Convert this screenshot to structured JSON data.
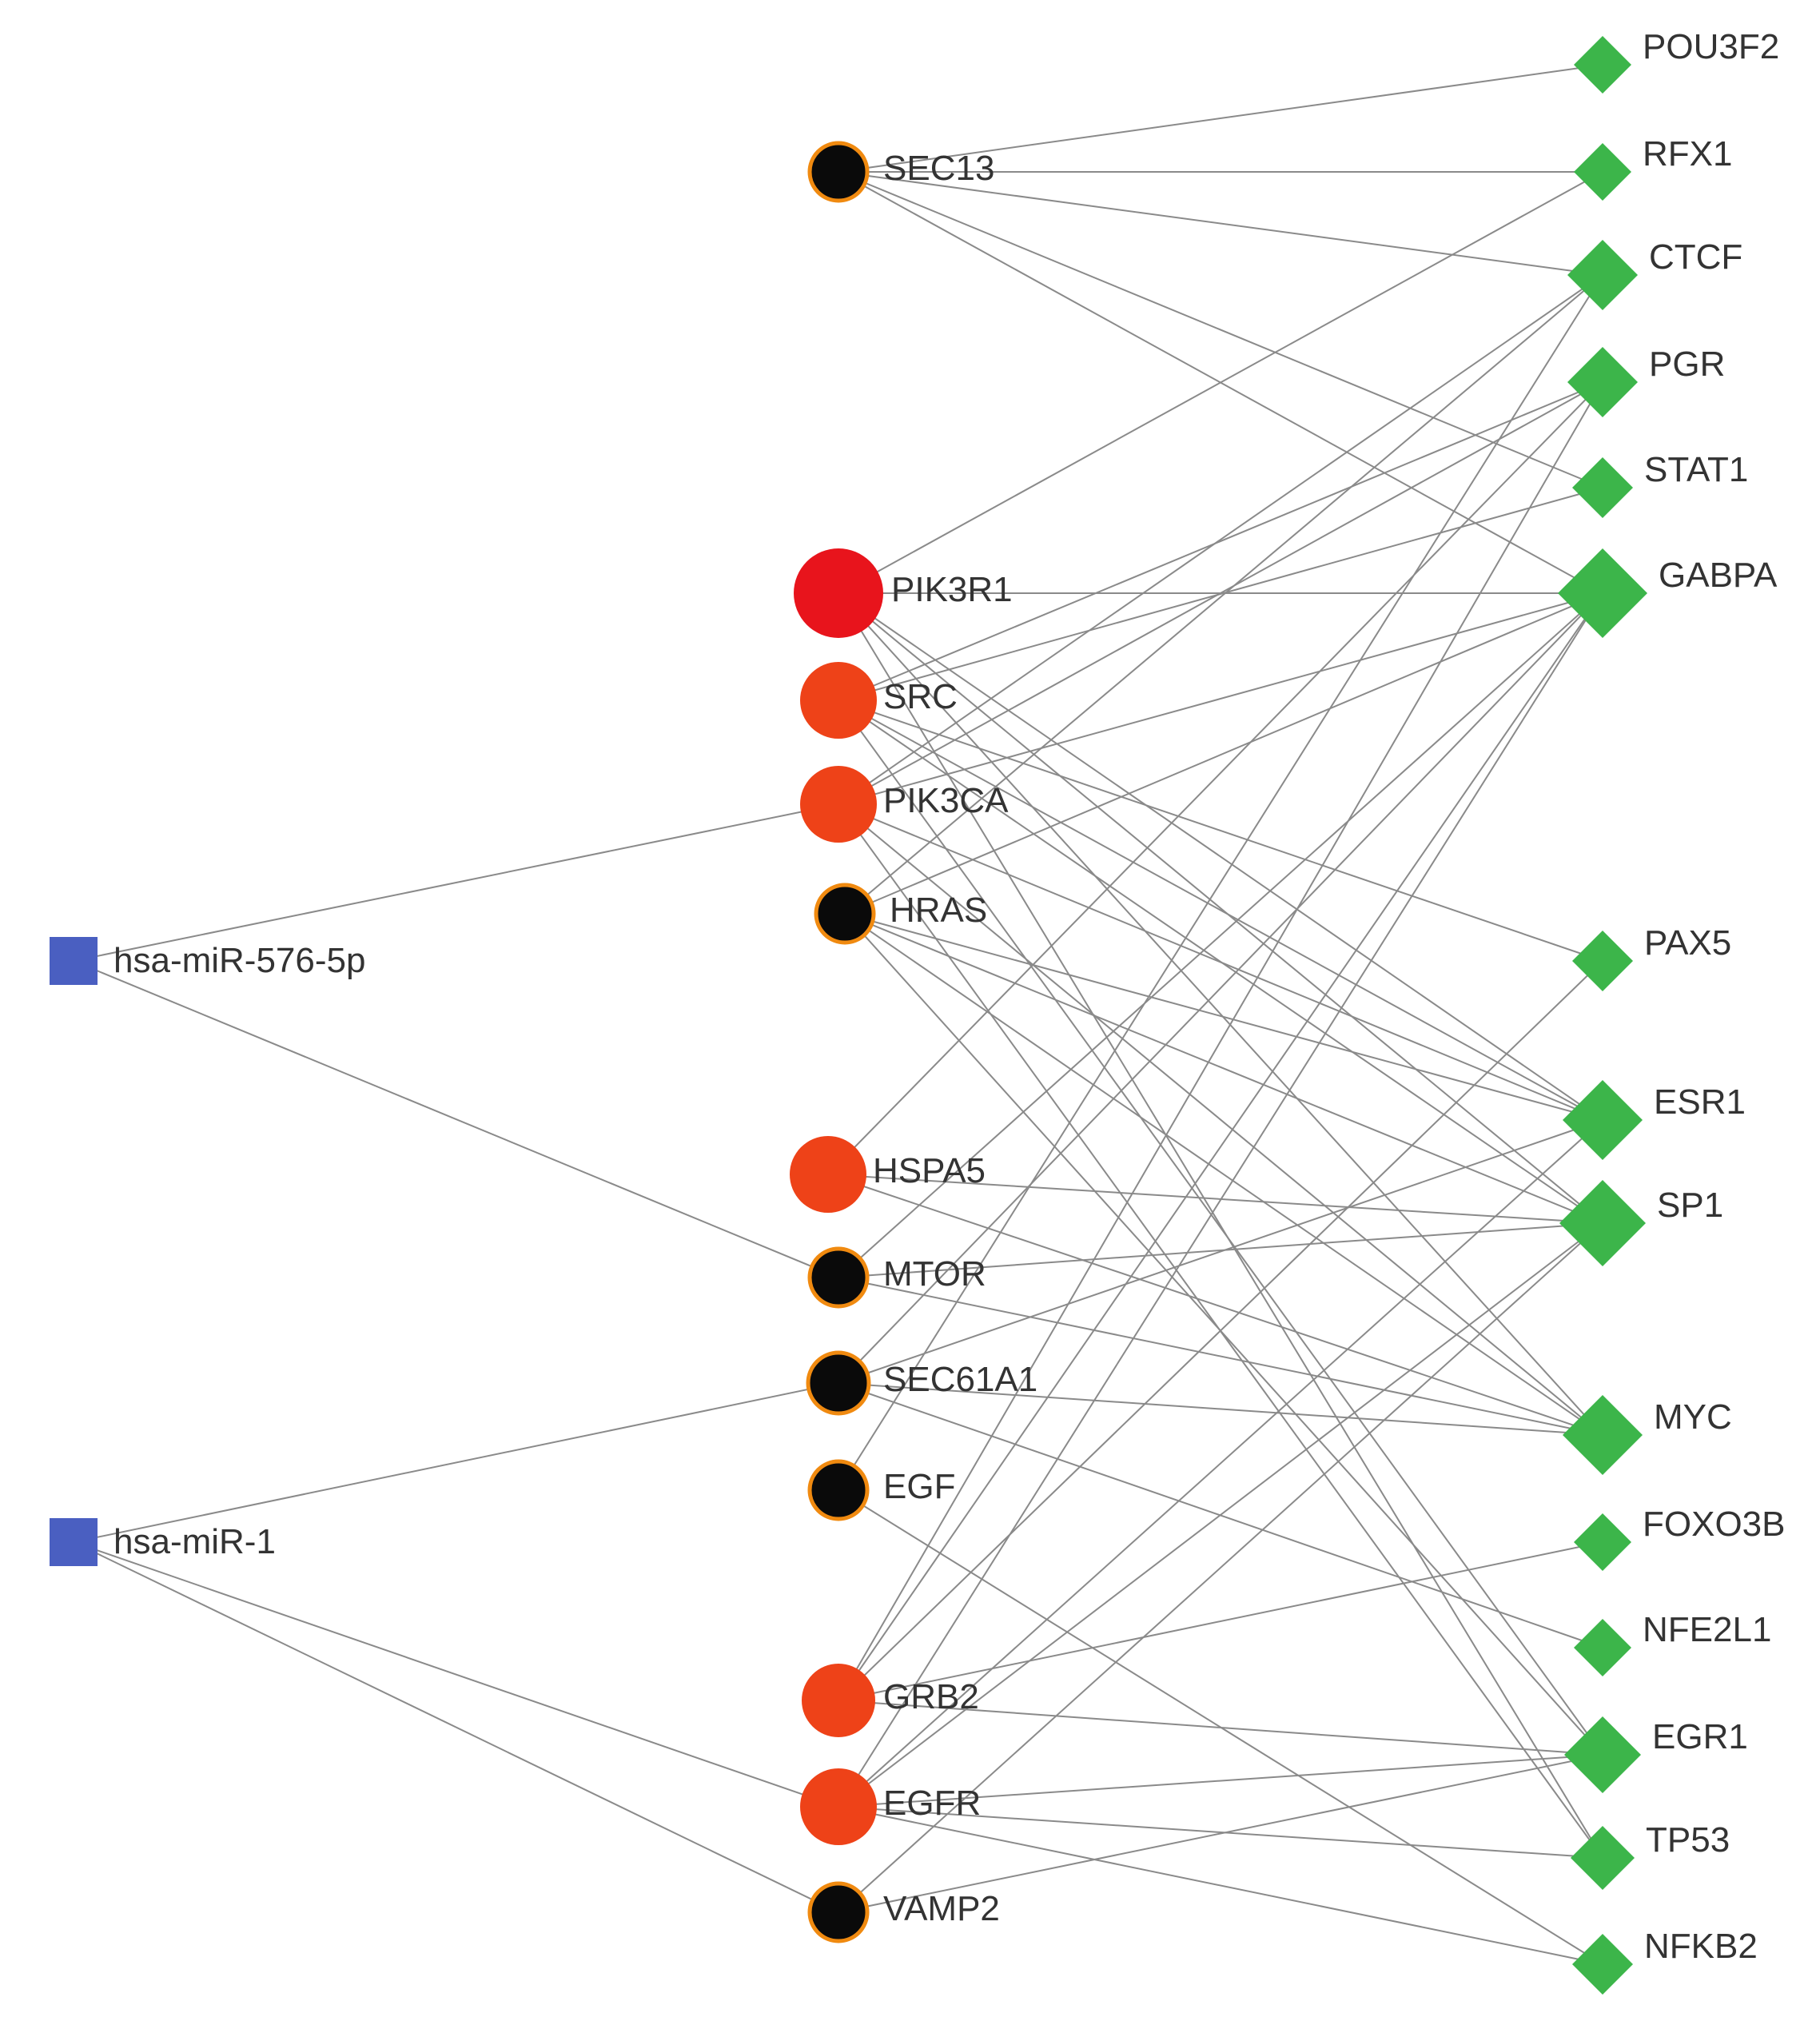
{
  "colors": {
    "mirna": "#4a5fc1",
    "tf": "#3cb54a",
    "hub_high": "#e8141c",
    "hub_mid": "#ee4218",
    "hub_low": "#0a0a0a",
    "hub_low_border": "#f08a10",
    "edge": "#8a8a8a"
  },
  "mirnas": [
    {
      "id": "hsa-miR-576-5p",
      "label": "hsa-miR-576-5p",
      "shape": "square"
    },
    {
      "id": "hsa-miR-1",
      "label": "hsa-miR-1",
      "shape": "square"
    }
  ],
  "genes": [
    {
      "id": "SEC13",
      "label": "SEC13",
      "level": "low"
    },
    {
      "id": "PIK3R1",
      "label": "PIK3R1",
      "level": "high"
    },
    {
      "id": "SRC",
      "label": "SRC",
      "level": "mid"
    },
    {
      "id": "PIK3CA",
      "label": "PIK3CA",
      "level": "mid"
    },
    {
      "id": "HRAS",
      "label": "HRAS",
      "level": "low"
    },
    {
      "id": "HSPA5",
      "label": "HSPA5",
      "level": "mid"
    },
    {
      "id": "MTOR",
      "label": "MTOR",
      "level": "low"
    },
    {
      "id": "SEC61A1",
      "label": "SEC61A1",
      "level": "low"
    },
    {
      "id": "EGF",
      "label": "EGF",
      "level": "low"
    },
    {
      "id": "GRB2",
      "label": "GRB2",
      "level": "mid"
    },
    {
      "id": "EGFR",
      "label": "EGFR",
      "level": "mid"
    },
    {
      "id": "VAMP2",
      "label": "VAMP2",
      "level": "low"
    }
  ],
  "tfs": [
    {
      "id": "POU3F2",
      "label": "POU3F2",
      "shape": "diamond"
    },
    {
      "id": "RFX1",
      "label": "RFX1",
      "shape": "diamond"
    },
    {
      "id": "CTCF",
      "label": "CTCF",
      "shape": "diamond"
    },
    {
      "id": "PGR",
      "label": "PGR",
      "shape": "diamond"
    },
    {
      "id": "STAT1",
      "label": "STAT1",
      "shape": "diamond"
    },
    {
      "id": "GABPA",
      "label": "GABPA",
      "shape": "diamond"
    },
    {
      "id": "PAX5",
      "label": "PAX5",
      "shape": "diamond"
    },
    {
      "id": "ESR1",
      "label": "ESR1",
      "shape": "diamond"
    },
    {
      "id": "SP1",
      "label": "SP1",
      "shape": "diamond"
    },
    {
      "id": "MYC",
      "label": "MYC",
      "shape": "diamond"
    },
    {
      "id": "FOXO3B",
      "label": "FOXO3B",
      "shape": "diamond"
    },
    {
      "id": "NFE2L1",
      "label": "NFE2L1",
      "shape": "diamond"
    },
    {
      "id": "EGR1",
      "label": "EGR1",
      "shape": "diamond"
    },
    {
      "id": "TP53",
      "label": "TP53",
      "shape": "diamond"
    },
    {
      "id": "NFKB2",
      "label": "NFKB2",
      "shape": "diamond"
    }
  ],
  "edges": [
    [
      "hsa-miR-576-5p",
      "PIK3CA"
    ],
    [
      "hsa-miR-576-5p",
      "MTOR"
    ],
    [
      "hsa-miR-1",
      "SEC61A1"
    ],
    [
      "hsa-miR-1",
      "EGFR"
    ],
    [
      "hsa-miR-1",
      "VAMP2"
    ],
    [
      "SEC13",
      "POU3F2"
    ],
    [
      "SEC13",
      "RFX1"
    ],
    [
      "SEC13",
      "CTCF"
    ],
    [
      "SEC13",
      "STAT1"
    ],
    [
      "SEC13",
      "GABPA"
    ],
    [
      "PIK3R1",
      "RFX1"
    ],
    [
      "PIK3R1",
      "GABPA"
    ],
    [
      "PIK3R1",
      "ESR1"
    ],
    [
      "PIK3R1",
      "SP1"
    ],
    [
      "PIK3R1",
      "MYC"
    ],
    [
      "PIK3R1",
      "TP53"
    ],
    [
      "SRC",
      "PGR"
    ],
    [
      "SRC",
      "STAT1"
    ],
    [
      "SRC",
      "PAX5"
    ],
    [
      "SRC",
      "ESR1"
    ],
    [
      "SRC",
      "SP1"
    ],
    [
      "SRC",
      "EGR1"
    ],
    [
      "PIK3CA",
      "CTCF"
    ],
    [
      "PIK3CA",
      "PGR"
    ],
    [
      "PIK3CA",
      "GABPA"
    ],
    [
      "PIK3CA",
      "ESR1"
    ],
    [
      "PIK3CA",
      "MYC"
    ],
    [
      "PIK3CA",
      "TP53"
    ],
    [
      "HRAS",
      "CTCF"
    ],
    [
      "HRAS",
      "GABPA"
    ],
    [
      "HRAS",
      "ESR1"
    ],
    [
      "HRAS",
      "SP1"
    ],
    [
      "HRAS",
      "MYC"
    ],
    [
      "HRAS",
      "EGR1"
    ],
    [
      "HSPA5",
      "SP1"
    ],
    [
      "HSPA5",
      "PGR"
    ],
    [
      "HSPA5",
      "MYC"
    ],
    [
      "MTOR",
      "SP1"
    ],
    [
      "MTOR",
      "MYC"
    ],
    [
      "MTOR",
      "GABPA"
    ],
    [
      "SEC61A1",
      "MYC"
    ],
    [
      "SEC61A1",
      "GABPA"
    ],
    [
      "SEC61A1",
      "ESR1"
    ],
    [
      "SEC61A1",
      "NFE2L1"
    ],
    [
      "EGF",
      "NFKB2"
    ],
    [
      "EGF",
      "CTCF"
    ],
    [
      "GRB2",
      "PAX5"
    ],
    [
      "GRB2",
      "GABPA"
    ],
    [
      "GRB2",
      "EGR1"
    ],
    [
      "GRB2",
      "FOXO3B"
    ],
    [
      "GRB2",
      "PGR"
    ],
    [
      "EGFR",
      "ESR1"
    ],
    [
      "EGFR",
      "SP1"
    ],
    [
      "EGFR",
      "EGR1"
    ],
    [
      "EGFR",
      "TP53"
    ],
    [
      "EGFR",
      "NFKB2"
    ],
    [
      "EGFR",
      "GABPA"
    ],
    [
      "VAMP2",
      "EGR1"
    ],
    [
      "VAMP2",
      "SP1"
    ]
  ]
}
